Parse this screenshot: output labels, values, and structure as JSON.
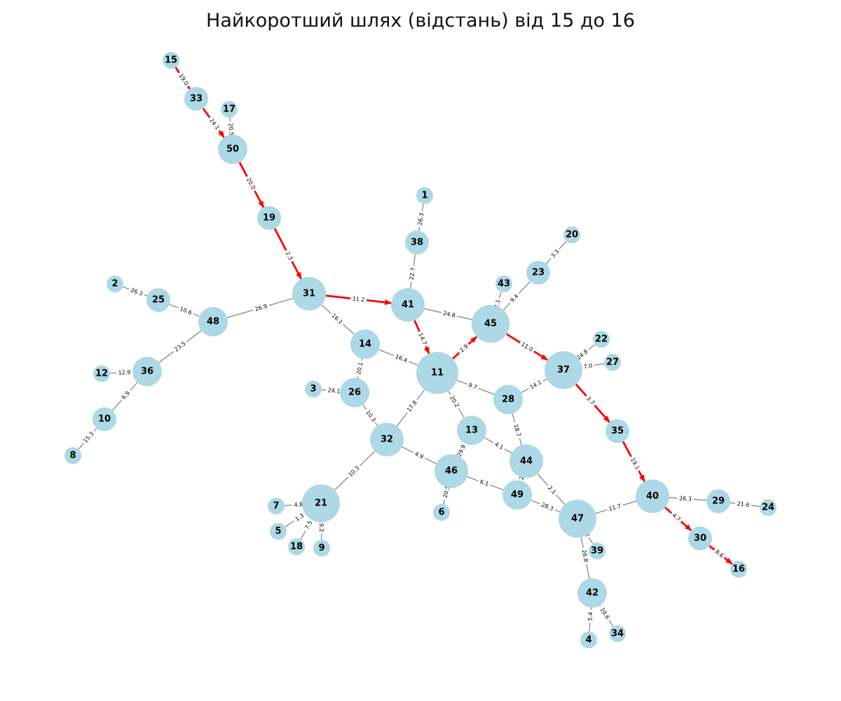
{
  "title": "Найкоротший шлях (відстань) від 15 до 16",
  "colors": {
    "node": "#add8e6",
    "edge": "#808080",
    "path": "#ff0000"
  },
  "nodes": [
    {
      "id": "15",
      "label": "15"
    },
    {
      "id": "33",
      "label": "33"
    },
    {
      "id": "17",
      "label": "17"
    },
    {
      "id": "50",
      "label": "50"
    },
    {
      "id": "19",
      "label": "19"
    },
    {
      "id": "1",
      "label": "1"
    },
    {
      "id": "38",
      "label": "38"
    },
    {
      "id": "20",
      "label": "20"
    },
    {
      "id": "23",
      "label": "23"
    },
    {
      "id": "43",
      "label": "43"
    },
    {
      "id": "2",
      "label": "2"
    },
    {
      "id": "25",
      "label": "25"
    },
    {
      "id": "31",
      "label": "31"
    },
    {
      "id": "41",
      "label": "41"
    },
    {
      "id": "45",
      "label": "45"
    },
    {
      "id": "48",
      "label": "48"
    },
    {
      "id": "22",
      "label": "22"
    },
    {
      "id": "14",
      "label": "14"
    },
    {
      "id": "27",
      "label": "27"
    },
    {
      "id": "37",
      "label": "37"
    },
    {
      "id": "11",
      "label": "11"
    },
    {
      "id": "12",
      "label": "12"
    },
    {
      "id": "36",
      "label": "36"
    },
    {
      "id": "3",
      "label": "3"
    },
    {
      "id": "26",
      "label": "26"
    },
    {
      "id": "28",
      "label": "28"
    },
    {
      "id": "10",
      "label": "10"
    },
    {
      "id": "13",
      "label": "13"
    },
    {
      "id": "35",
      "label": "35"
    },
    {
      "id": "32",
      "label": "32"
    },
    {
      "id": "8",
      "label": "8"
    },
    {
      "id": "44",
      "label": "44"
    },
    {
      "id": "46",
      "label": "46"
    },
    {
      "id": "49",
      "label": "49"
    },
    {
      "id": "40",
      "label": "40"
    },
    {
      "id": "21",
      "label": "21"
    },
    {
      "id": "7",
      "label": "7"
    },
    {
      "id": "29",
      "label": "29"
    },
    {
      "id": "24",
      "label": "24"
    },
    {
      "id": "6",
      "label": "6"
    },
    {
      "id": "47",
      "label": "47"
    },
    {
      "id": "5",
      "label": "5"
    },
    {
      "id": "30",
      "label": "30"
    },
    {
      "id": "18",
      "label": "18"
    },
    {
      "id": "9",
      "label": "9"
    },
    {
      "id": "39",
      "label": "39"
    },
    {
      "id": "16",
      "label": "16"
    },
    {
      "id": "42",
      "label": "42"
    },
    {
      "id": "4",
      "label": "4"
    },
    {
      "id": "34",
      "label": "34"
    }
  ],
  "edges": [
    {
      "source": "15",
      "target": "33",
      "weight": "19.0",
      "on_path": true
    },
    {
      "source": "33",
      "target": "50",
      "weight": "24.1",
      "on_path": true
    },
    {
      "source": "17",
      "target": "50",
      "weight": "20.5",
      "on_path": false
    },
    {
      "source": "50",
      "target": "19",
      "weight": "20.0",
      "on_path": true
    },
    {
      "source": "19",
      "target": "31",
      "weight": "2.3",
      "on_path": true
    },
    {
      "source": "31",
      "target": "41",
      "weight": "11.2",
      "on_path": true
    },
    {
      "source": "41",
      "target": "11",
      "weight": "14.7",
      "on_path": true
    },
    {
      "source": "11",
      "target": "45",
      "weight": "2.9",
      "on_path": true
    },
    {
      "source": "45",
      "target": "37",
      "weight": "11.0",
      "on_path": true
    },
    {
      "source": "37",
      "target": "35",
      "weight": "3.7",
      "on_path": true
    },
    {
      "source": "35",
      "target": "40",
      "weight": "19.1",
      "on_path": true
    },
    {
      "source": "40",
      "target": "30",
      "weight": "4.7",
      "on_path": true
    },
    {
      "source": "30",
      "target": "16",
      "weight": "8.6",
      "on_path": true
    },
    {
      "source": "1",
      "target": "38",
      "weight": "26.3",
      "on_path": false
    },
    {
      "source": "38",
      "target": "41",
      "weight": "22.7",
      "on_path": false
    },
    {
      "source": "20",
      "target": "23",
      "weight": "3.3",
      "on_path": false
    },
    {
      "source": "23",
      "target": "45",
      "weight": "9.4",
      "on_path": false
    },
    {
      "source": "43",
      "target": "45",
      "weight": "2.1",
      "on_path": false
    },
    {
      "source": "41",
      "target": "45",
      "weight": "24.8",
      "on_path": false
    },
    {
      "source": "2",
      "target": "25",
      "weight": "26.3",
      "on_path": false
    },
    {
      "source": "25",
      "target": "48",
      "weight": "10.6",
      "on_path": false
    },
    {
      "source": "48",
      "target": "31",
      "weight": "26.9",
      "on_path": false
    },
    {
      "source": "31",
      "target": "14",
      "weight": "16.1",
      "on_path": false
    },
    {
      "source": "14",
      "target": "11",
      "weight": "16.4",
      "on_path": false
    },
    {
      "source": "14",
      "target": "26",
      "weight": "20.1",
      "on_path": false
    },
    {
      "source": "48",
      "target": "36",
      "weight": "23.5",
      "on_path": false
    },
    {
      "source": "12",
      "target": "36",
      "weight": "12.9",
      "on_path": false
    },
    {
      "source": "36",
      "target": "10",
      "weight": "6.9",
      "on_path": false
    },
    {
      "source": "10",
      "target": "8",
      "weight": "15.3",
      "on_path": false
    },
    {
      "source": "22",
      "target": "37",
      "weight": "24.8",
      "on_path": false
    },
    {
      "source": "27",
      "target": "37",
      "weight": "7.0",
      "on_path": false
    },
    {
      "source": "37",
      "target": "28",
      "weight": "14.1",
      "on_path": false
    },
    {
      "source": "11",
      "target": "28",
      "weight": "9.7",
      "on_path": false
    },
    {
      "source": "11",
      "target": "13",
      "weight": "20.2",
      "on_path": false
    },
    {
      "source": "11",
      "target": "32",
      "weight": "17.8",
      "on_path": false
    },
    {
      "source": "3",
      "target": "26",
      "weight": "24.1",
      "on_path": false
    },
    {
      "source": "26",
      "target": "32",
      "weight": "10.3",
      "on_path": false
    },
    {
      "source": "28",
      "target": "44",
      "weight": "18.7",
      "on_path": false
    },
    {
      "source": "13",
      "target": "44",
      "weight": "4.1",
      "on_path": false
    },
    {
      "source": "13",
      "target": "46",
      "weight": "29.9",
      "on_path": false
    },
    {
      "source": "32",
      "target": "46",
      "weight": "4.9",
      "on_path": false
    },
    {
      "source": "32",
      "target": "21",
      "weight": "10.3",
      "on_path": false
    },
    {
      "source": "46",
      "target": "6",
      "weight": "20.5",
      "on_path": false
    },
    {
      "source": "46",
      "target": "49",
      "weight": "6.1",
      "on_path": false
    },
    {
      "source": "44",
      "target": "49",
      "weight": "2",
      "on_path": false
    },
    {
      "source": "44",
      "target": "47",
      "weight": "2.1",
      "on_path": false
    },
    {
      "source": "49",
      "target": "47",
      "weight": "28.3",
      "on_path": false
    },
    {
      "source": "47",
      "target": "40",
      "weight": "11.7",
      "on_path": false
    },
    {
      "source": "40",
      "target": "29",
      "weight": "26.3",
      "on_path": false
    },
    {
      "source": "29",
      "target": "24",
      "weight": "21.6",
      "on_path": false
    },
    {
      "source": "7",
      "target": "21",
      "weight": "4.8",
      "on_path": false
    },
    {
      "source": "5",
      "target": "21",
      "weight": "1.3",
      "on_path": false
    },
    {
      "source": "18",
      "target": "21",
      "weight": "7.5",
      "on_path": false
    },
    {
      "source": "9",
      "target": "21",
      "weight": "19.2",
      "on_path": false
    },
    {
      "source": "47",
      "target": "39",
      "weight": "2",
      "on_path": false
    },
    {
      "source": "47",
      "target": "42",
      "weight": "26.8",
      "on_path": false
    },
    {
      "source": "42",
      "target": "4",
      "weight": "5.4",
      "on_path": false
    },
    {
      "source": "42",
      "target": "34",
      "weight": "10.6",
      "on_path": false
    }
  ]
}
